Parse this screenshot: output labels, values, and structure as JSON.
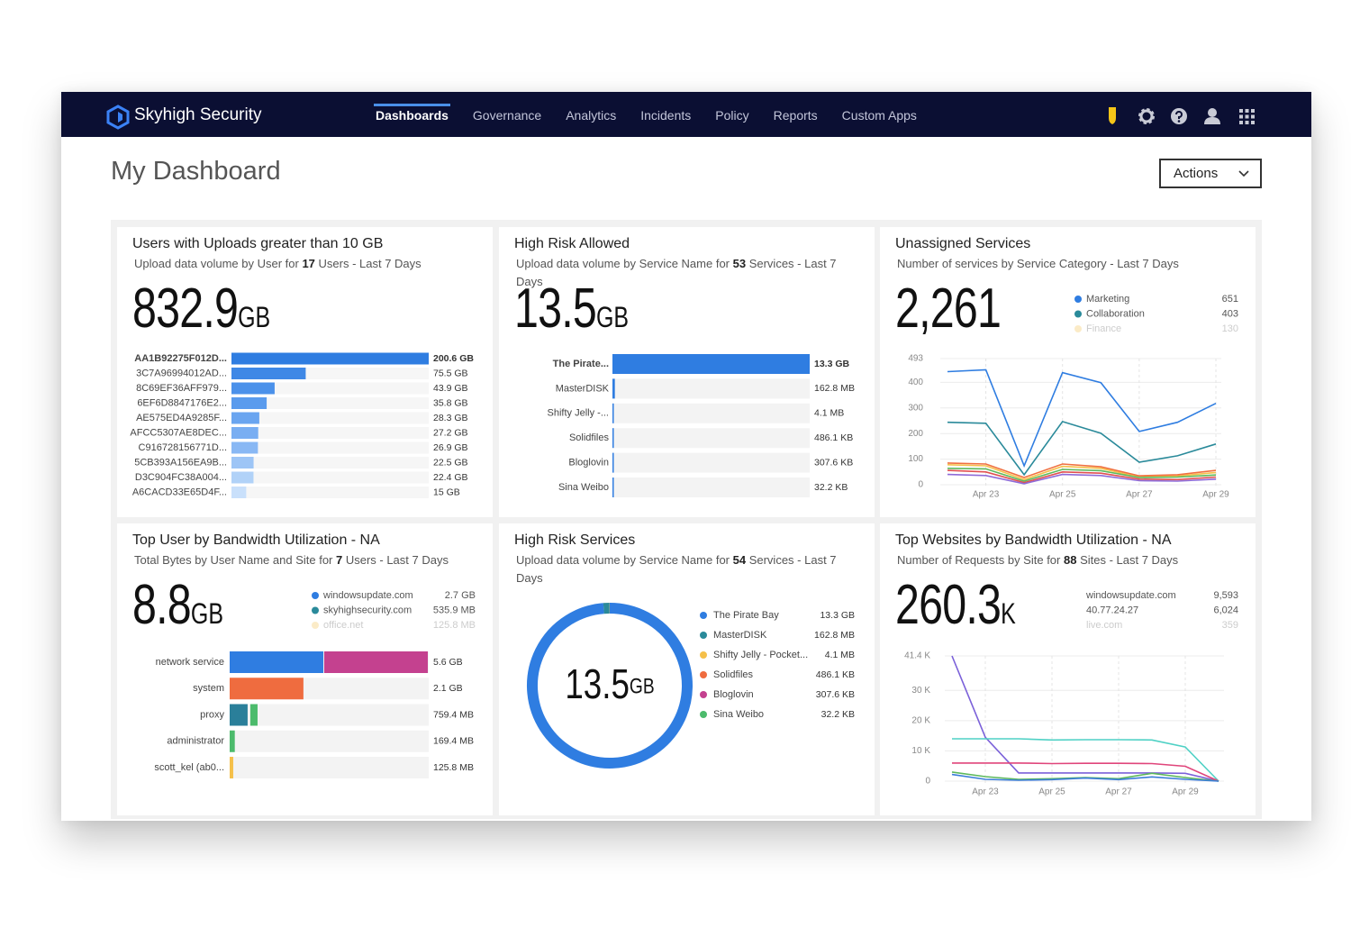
{
  "nav": {
    "brand": "Skyhigh Security",
    "items": [
      "Dashboards",
      "Governance",
      "Analytics",
      "Incidents",
      "Policy",
      "Reports",
      "Custom Apps"
    ]
  },
  "header": {
    "title": "My Dashboard",
    "actions": "Actions"
  },
  "widgets": [
    {
      "kind": "bars",
      "title": "Users with Uploads greater than 10 GB",
      "subtitle": [
        "Upload data volume by User for ",
        "17",
        " Users - Last 7 Days"
      ],
      "kpi": "832.9",
      "kpi_unit": "GB",
      "categories": [
        "AA1B92275F012D...",
        "3C7A96994012AD...",
        "8C69EF36AFF979...",
        "6EF6D8847176E2...",
        "AE575ED4A9285F...",
        "AFCC5307AE8DEC...",
        "C916728156771D...",
        "5CB393A156EA9B...",
        "D3C904FC38A004...",
        "A6CACD33E65D4F..."
      ],
      "values": [
        200.6,
        75.5,
        43.9,
        35.8,
        28.3,
        27.2,
        26.9,
        22.5,
        22.4,
        15
      ],
      "value_labels": [
        "200.6 GB",
        "75.5 GB",
        "43.9 GB",
        "35.8 GB",
        "28.3 GB",
        "27.2 GB",
        "26.9 GB",
        "22.5 GB",
        "22.4 GB",
        "15 GB"
      ],
      "colors": [
        "#2f7de1",
        "#3f88e6",
        "#4b91ea",
        "#5a9bed",
        "#6aa5f0",
        "#79aef2",
        "#89b8f4",
        "#9dc5f6",
        "#b1d2f8",
        "#c9e0fb"
      ]
    },
    {
      "kind": "bars",
      "title": "High Risk Allowed",
      "subtitle": [
        "Upload data volume by Service Name for ",
        "53",
        " Services - Last 7 Days"
      ],
      "kpi": "13.5",
      "kpi_unit": "GB",
      "categories": [
        "The Pirate...",
        "MasterDISK",
        "Shifty Jelly -...",
        "Solidfiles",
        "Bloglovin",
        "Sina Weibo"
      ],
      "values": [
        13.3,
        0.1628,
        0.0041,
        0.0004861,
        0.0003076,
        3.22e-05
      ],
      "value_labels": [
        "13.3 GB",
        "162.8 MB",
        "4.1 MB",
        "486.1 KB",
        "307.6 KB",
        "32.2 KB"
      ],
      "colors": [
        "#2f7de1",
        "#2f7de1",
        "#2f7de1",
        "#2f7de1",
        "#2f7de1",
        "#2f7de1"
      ]
    },
    {
      "kind": "line",
      "title": "Unassigned Services",
      "subtitle": [
        "Number of services by Service Category - Last 7 Days"
      ],
      "kpi": "2,261",
      "legend": [
        {
          "label": "Marketing",
          "value": "651",
          "color": "#2f7de1"
        },
        {
          "label": "Collaboration",
          "value": "403",
          "color": "#2a8a9a"
        },
        {
          "label": "Finance",
          "value": "130",
          "color": "#f5c04a"
        }
      ],
      "x": [
        null,
        "Apr 23",
        null,
        "Apr 25",
        null,
        "Apr 27",
        null,
        "Apr 29"
      ],
      "ylim": [
        0,
        493
      ],
      "yticks": [
        0,
        100,
        200,
        300,
        400,
        493
      ],
      "series": [
        {
          "color": "#2f7de1",
          "values": [
            442,
            449,
            74,
            438,
            399,
            208,
            244,
            318
          ]
        },
        {
          "color": "#2a8a9a",
          "values": [
            244,
            240,
            39,
            247,
            201,
            88,
            113,
            159
          ]
        },
        {
          "color": "#f5c04a",
          "values": [
            78,
            74,
            20,
            72,
            64,
            30,
            34,
            48
          ]
        },
        {
          "color": "#f07040",
          "values": [
            85,
            81,
            28,
            81,
            70,
            35,
            39,
            56
          ]
        },
        {
          "color": "#5cb85c",
          "values": [
            64,
            62,
            14,
            60,
            55,
            28,
            30,
            38
          ]
        },
        {
          "color": "#e05050",
          "values": [
            56,
            50,
            8,
            50,
            45,
            22,
            20,
            30
          ]
        },
        {
          "color": "#8e6bd8",
          "values": [
            40,
            36,
            4,
            40,
            36,
            16,
            14,
            22
          ]
        }
      ]
    },
    {
      "kind": "stacked",
      "title": "Top User by Bandwidth Utilization - NA",
      "subtitle": [
        "Total Bytes by User Name and Site for ",
        "7",
        " Users - Last 7 Days"
      ],
      "kpi": "8.8",
      "kpi_unit": "GB",
      "legend": [
        {
          "label": "windowsupdate.com",
          "value": "2.7 GB",
          "color": "#2f7de1"
        },
        {
          "label": "skyhighsecurity.com",
          "value": "535.9 MB",
          "color": "#2a8a9a"
        },
        {
          "label": "office.net",
          "value": "125.8 MB",
          "color": "#f5c04a"
        }
      ],
      "rows": [
        {
          "label": "network service",
          "value_label": "5.6 GB",
          "segments": [
            {
              "color": "#2f7de1",
              "value": 2.66
            },
            {
              "color": "#c4418f",
              "value": 2.94
            }
          ]
        },
        {
          "label": "system",
          "value_label": "2.1 GB",
          "segments": [
            {
              "color": "#ef6c3f",
              "value": 2.1
            }
          ]
        },
        {
          "label": "proxy",
          "value_label": "759.4 MB",
          "segments": [
            {
              "color": "#2a7f9a",
              "value": 0.53
            },
            {
              "color": "#4cbb6c",
              "value": 0.2294
            }
          ]
        },
        {
          "label": "administrator",
          "value_label": "169.4 MB",
          "segments": [
            {
              "color": "#4cbb6c",
              "value": 0.1694
            }
          ]
        },
        {
          "label": "scott_kel (ab0...",
          "value_label": "125.8 MB",
          "segments": [
            {
              "color": "#f5c04a",
              "value": 0.1258
            }
          ]
        }
      ]
    },
    {
      "kind": "donut",
      "title": "High Risk Services",
      "subtitle": [
        "Upload data volume by Service Name for ",
        "54",
        " Services - Last 7 Days"
      ],
      "kpi": "13.5",
      "kpi_unit": "GB",
      "categories": [
        "The Pirate Bay",
        "MasterDISK",
        "Shifty Jelly - Pocket...",
        "Solidfiles",
        "Bloglovin",
        "Sina Weibo"
      ],
      "values": [
        13.3,
        0.1628,
        0.0041,
        0.0004861,
        0.0003076,
        3.22e-05
      ],
      "value_labels": [
        "13.3 GB",
        "162.8 MB",
        "4.1 MB",
        "486.1 KB",
        "307.6 KB",
        "32.2 KB"
      ],
      "colors": [
        "#2f7de1",
        "#2a8a9a",
        "#f5c04a",
        "#ef6c3f",
        "#c4418f",
        "#4cbb6c"
      ]
    },
    {
      "kind": "line",
      "title": "Top Websites by Bandwidth Utilization - NA",
      "subtitle": [
        "Number of Requests by Site for ",
        "88",
        " Sites - Last 7 Days"
      ],
      "kpi": "260.3",
      "kpi_unit": "K",
      "legend": [
        {
          "label": "windowsupdate.com",
          "value": "9,593"
        },
        {
          "label": "40.77.24.27",
          "value": "6,024"
        },
        {
          "label": "live.com",
          "value": "359"
        }
      ],
      "x": [
        null,
        "Apr 23",
        null,
        "Apr 25",
        null,
        "Apr 27",
        null,
        "Apr 29",
        null
      ],
      "ylim": [
        0,
        41400
      ],
      "yticks": [
        0,
        {
          "value": 10000,
          "label": "10 K"
        },
        {
          "value": 20000,
          "label": "20 K"
        },
        {
          "value": 30000,
          "label": "30 K"
        },
        {
          "value": 41400,
          "label": "41.4 K"
        }
      ],
      "series": [
        {
          "color": "#7b61d9",
          "values": [
            41400,
            14500,
            2700,
            2700,
            2700,
            2700,
            2700,
            2600,
            0
          ]
        },
        {
          "color": "#4fd1c5",
          "values": [
            14000,
            14000,
            14000,
            13600,
            13700,
            13700,
            13600,
            11300,
            0
          ]
        },
        {
          "color": "#e0457b",
          "values": [
            6000,
            6000,
            6000,
            5800,
            5900,
            5900,
            5800,
            4900,
            0
          ]
        },
        {
          "color": "#5cb85c",
          "values": [
            3000,
            1500,
            600,
            800,
            1200,
            800,
            2600,
            1200,
            0
          ]
        },
        {
          "color": "#3b7dd8",
          "values": [
            2200,
            600,
            300,
            500,
            1000,
            500,
            1400,
            600,
            0
          ]
        }
      ]
    }
  ]
}
